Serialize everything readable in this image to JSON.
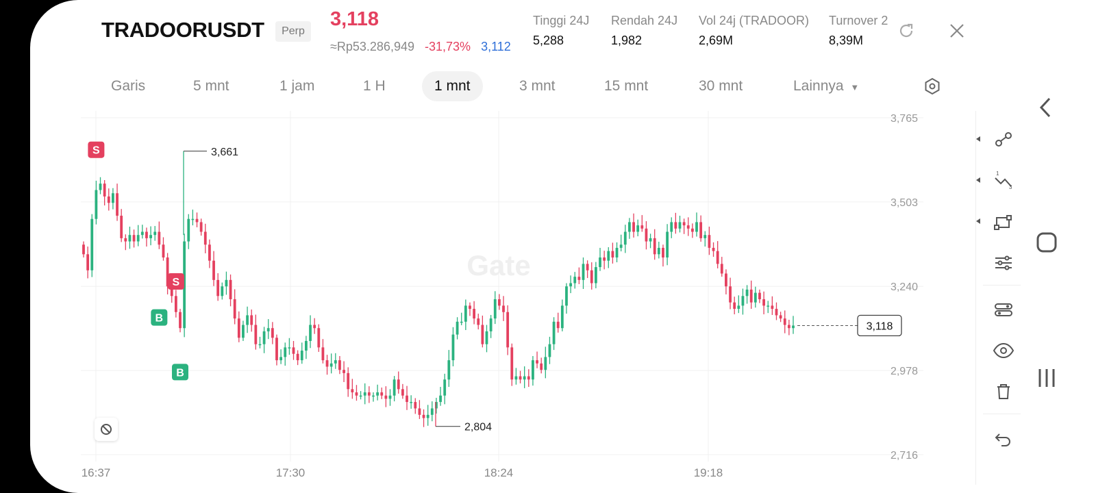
{
  "header": {
    "symbol": "TRADOORUSDT",
    "contract_type": "Perp",
    "last_price": "3,118",
    "idr_price": "≈Rp53.286,949",
    "change_percent": "-31,73%",
    "mark_price": "3,112",
    "stats": [
      {
        "label": "Tinggi 24J",
        "value": "5,288"
      },
      {
        "label": "Rendah 24J",
        "value": "1,982"
      },
      {
        "label": "Vol 24j (TRADOOR)",
        "value": "2,69M"
      },
      {
        "label": "Turnover 2",
        "value": "8,39M"
      }
    ],
    "icons": {
      "rotate": "rotate-icon",
      "close": "close-icon"
    }
  },
  "tabs": [
    {
      "label": "Garis",
      "active": false
    },
    {
      "label": "5 mnt",
      "active": false
    },
    {
      "label": "1 jam",
      "active": false
    },
    {
      "label": "1 H",
      "active": false
    },
    {
      "label": "1 mnt",
      "active": true
    },
    {
      "label": "3 mnt",
      "active": false
    },
    {
      "label": "15 mnt",
      "active": false
    },
    {
      "label": "30 mnt",
      "active": false
    },
    {
      "label": "Lainnya",
      "active": false
    }
  ],
  "colors": {
    "up": "#2bb27f",
    "down": "#e4405f",
    "accent_blue": "#2f6fd8"
  },
  "chart_data": {
    "type": "candlestick",
    "watermark": "Gate",
    "x_ticks": [
      "16:37",
      "17:30",
      "18:24",
      "19:18"
    ],
    "y_ticks": [
      "3,765",
      "3,503",
      "3,240",
      "2,978",
      "2,716"
    ],
    "ylim": [
      2716,
      3765
    ],
    "high_marker": "3,661",
    "low_marker": "2,804",
    "current_price_label": "3,118",
    "markers": [
      {
        "text": "S",
        "type": "sell",
        "index": 3,
        "value": 3610
      },
      {
        "text": "B",
        "type": "buy",
        "index": 18,
        "value": 3190
      },
      {
        "text": "S",
        "type": "sell",
        "index": 22,
        "value": 3200
      },
      {
        "text": "B",
        "type": "buy",
        "index": 23,
        "value": 3020
      }
    ],
    "closes": [
      3340,
      3290,
      3450,
      3540,
      3560,
      3520,
      3500,
      3530,
      3460,
      3390,
      3380,
      3400,
      3380,
      3400,
      3410,
      3390,
      3400,
      3410,
      3370,
      3330,
      3240,
      3210,
      3160,
      3110,
      3380,
      3450,
      3450,
      3440,
      3410,
      3370,
      3320,
      3260,
      3210,
      3240,
      3260,
      3200,
      3140,
      3080,
      3120,
      3150,
      3120,
      3060,
      3060,
      3100,
      3110,
      3080,
      3010,
      3020,
      3050,
      3050,
      3030,
      3010,
      3040,
      3070,
      3120,
      3110,
      3050,
      3010,
      2990,
      3000,
      3010,
      2980,
      2970,
      2920,
      2910,
      2900,
      2900,
      2910,
      2900,
      2900,
      2910,
      2900,
      2890,
      2900,
      2950,
      2920,
      2900,
      2880,
      2880,
      2860,
      2840,
      2830,
      2840,
      2860,
      2880,
      2900,
      2950,
      3010,
      3090,
      3130,
      3130,
      3180,
      3170,
      3140,
      3120,
      3060,
      3100,
      3140,
      3200,
      3180,
      3160,
      3050,
      2950,
      2960,
      2950,
      2960,
      2950,
      3010,
      3000,
      2980,
      3020,
      3060,
      3130,
      3110,
      3180,
      3240,
      3250,
      3270,
      3260,
      3310,
      3290,
      3250,
      3300,
      3330,
      3320,
      3350,
      3330,
      3360,
      3370,
      3410,
      3440,
      3410,
      3430,
      3420,
      3380,
      3390,
      3340,
      3360,
      3330,
      3410,
      3440,
      3420,
      3440,
      3430,
      3420,
      3410,
      3440,
      3390,
      3400,
      3360,
      3350,
      3310,
      3280,
      3240,
      3190,
      3170,
      3180,
      3210,
      3230,
      3190,
      3220,
      3200,
      3180,
      3180,
      3170,
      3150,
      3140,
      3120,
      3110,
      3118
    ]
  },
  "toolbar": [
    "line-tool-icon",
    "fibonacci-icon",
    "shape-tool-icon",
    "settings-lines-icon",
    "indicator-icon",
    "eye-icon",
    "trash-icon",
    "undo-icon"
  ],
  "navbar": [
    "back-icon",
    "home-icon",
    "recents-icon"
  ]
}
